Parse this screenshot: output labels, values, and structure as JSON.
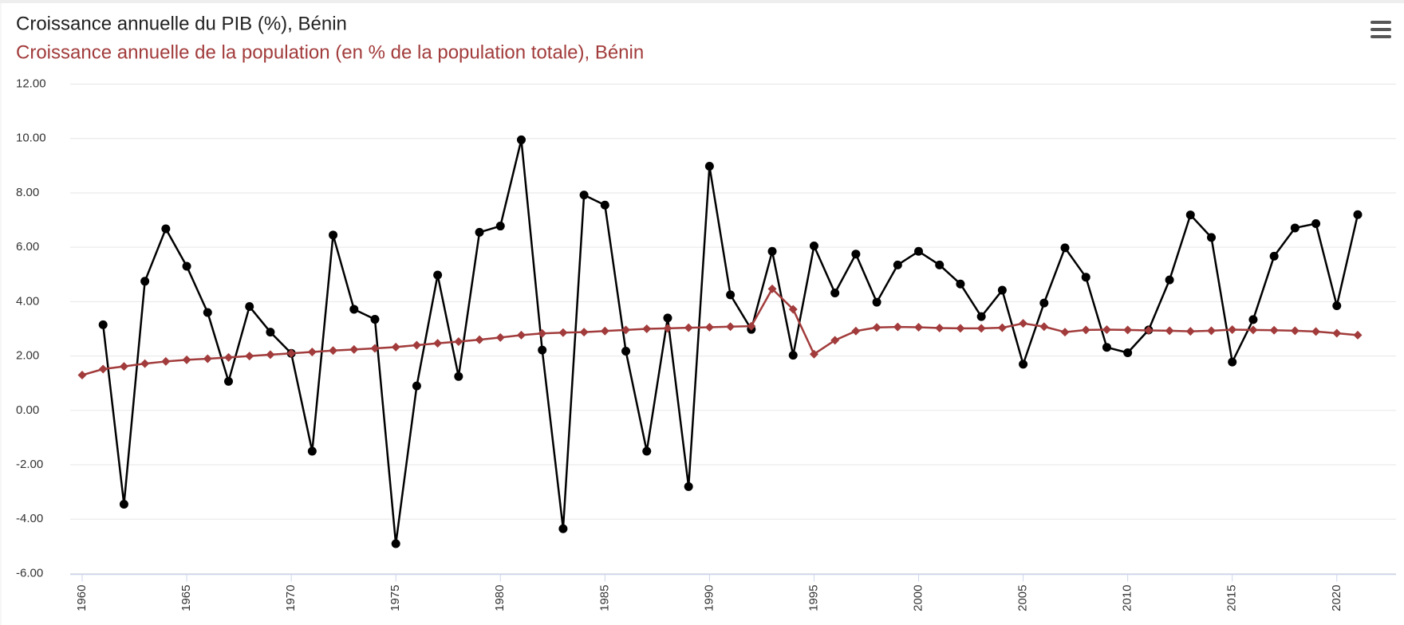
{
  "chart_data": {
    "type": "line",
    "x": [
      1960,
      1961,
      1962,
      1963,
      1964,
      1965,
      1966,
      1967,
      1968,
      1969,
      1970,
      1971,
      1972,
      1973,
      1974,
      1975,
      1976,
      1977,
      1978,
      1979,
      1980,
      1981,
      1982,
      1983,
      1984,
      1985,
      1986,
      1987,
      1988,
      1989,
      1990,
      1991,
      1992,
      1993,
      1994,
      1995,
      1996,
      1997,
      1998,
      1999,
      2000,
      2001,
      2002,
      2003,
      2004,
      2005,
      2006,
      2007,
      2008,
      2009,
      2010,
      2011,
      2012,
      2013,
      2014,
      2015,
      2016,
      2017,
      2018,
      2019,
      2020,
      2021
    ],
    "series": [
      {
        "name": "Croissance annuelle du PIB (%), Bénin",
        "color": "#000000",
        "marker": "circle",
        "values": [
          null,
          3.15,
          -3.45,
          4.75,
          6.68,
          5.3,
          3.6,
          1.07,
          3.82,
          2.88,
          2.1,
          -1.5,
          6.45,
          3.72,
          3.35,
          -4.9,
          0.9,
          4.98,
          1.25,
          6.55,
          6.78,
          9.95,
          2.22,
          -4.35,
          7.92,
          7.55,
          2.18,
          -1.5,
          3.4,
          -2.8,
          8.98,
          4.25,
          2.98,
          5.85,
          2.03,
          6.05,
          4.32,
          5.75,
          3.98,
          5.35,
          5.85,
          5.35,
          4.65,
          3.45,
          4.42,
          1.7,
          3.95,
          5.98,
          4.9,
          2.32,
          2.12,
          2.96,
          4.8,
          7.19,
          6.36,
          1.78,
          3.34,
          5.67,
          6.71,
          6.87,
          3.85,
          7.2
        ]
      },
      {
        "name": "Croissance annuelle de la population (en % de la population totale), Bénin",
        "color": "#a23b3b",
        "marker": "diamond",
        "values": [
          1.3,
          1.52,
          1.62,
          1.72,
          1.8,
          1.86,
          1.9,
          1.95,
          2.0,
          2.05,
          2.1,
          2.15,
          2.2,
          2.24,
          2.28,
          2.33,
          2.4,
          2.47,
          2.53,
          2.6,
          2.68,
          2.77,
          2.83,
          2.86,
          2.88,
          2.92,
          2.96,
          3.0,
          3.02,
          3.04,
          3.06,
          3.08,
          3.1,
          4.47,
          3.72,
          2.07,
          2.58,
          2.92,
          3.05,
          3.07,
          3.06,
          3.03,
          3.02,
          3.02,
          3.04,
          3.2,
          3.08,
          2.88,
          2.96,
          2.97,
          2.96,
          2.94,
          2.93,
          2.91,
          2.93,
          2.97,
          2.96,
          2.95,
          2.93,
          2.9,
          2.84,
          2.77
        ]
      }
    ],
    "xlim": [
      1960,
      2021
    ],
    "xticks": [
      1960,
      1965,
      1970,
      1975,
      1980,
      1985,
      1990,
      1995,
      2000,
      2005,
      2010,
      2015,
      2020
    ],
    "ylim": [
      -6,
      12
    ],
    "yticks": [
      {
        "value": 12,
        "label": "12.00"
      },
      {
        "value": 10,
        "label": "10.00"
      },
      {
        "value": 8,
        "label": "8.00"
      },
      {
        "value": 6,
        "label": "6.00"
      },
      {
        "value": 4,
        "label": "4.00"
      },
      {
        "value": 2,
        "label": "2.00"
      },
      {
        "value": 0,
        "label": "0.00"
      },
      {
        "value": -2,
        "label": "-2.00"
      },
      {
        "value": -4,
        "label": "-4.00"
      },
      {
        "value": -6,
        "label": "-6.00"
      }
    ],
    "grid": true
  }
}
